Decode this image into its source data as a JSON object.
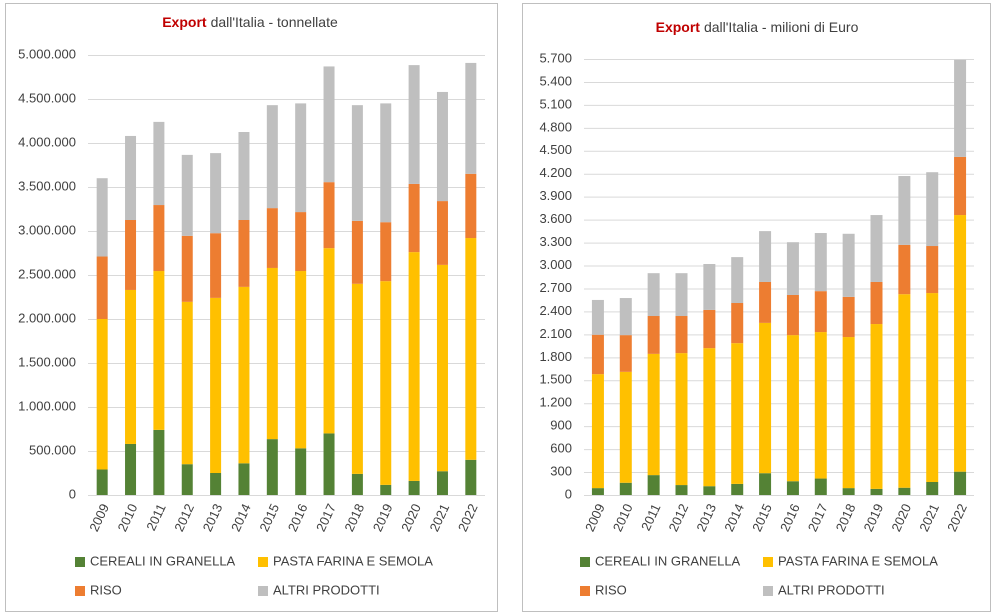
{
  "chart_data": [
    {
      "type": "stacked_bar",
      "title_emphasis": "Export",
      "title": "dall'Italia - tonnellate",
      "categories": [
        "2009",
        "2010",
        "2011",
        "2012",
        "2013",
        "2014",
        "2015",
        "2016",
        "2017",
        "2018",
        "2019",
        "2020",
        "2021",
        "2022"
      ],
      "series": [
        {
          "name": "CEREALI IN GRANELLA",
          "color": "#548235",
          "values": [
            290000,
            580000,
            740000,
            350000,
            250000,
            360000,
            635000,
            530000,
            700000,
            240000,
            115000,
            160000,
            270000,
            400000
          ]
        },
        {
          "name": "PASTA FARINA E SEMOLA",
          "color": "#ffc000",
          "values": [
            1710000,
            1750000,
            1805000,
            1845000,
            1990000,
            2005000,
            1945000,
            2015000,
            2105000,
            2160000,
            2315000,
            2600000,
            2345000,
            2520000
          ]
        },
        {
          "name": "RISO",
          "color": "#ed7d31",
          "values": [
            710000,
            795000,
            750000,
            750000,
            735000,
            760000,
            680000,
            670000,
            750000,
            715000,
            670000,
            775000,
            725000,
            730000
          ]
        },
        {
          "name": "ALTRI PRODOTTI",
          "color": "#bfbfbf",
          "values": [
            890000,
            955000,
            945000,
            920000,
            910000,
            1000000,
            1170000,
            1235000,
            1315000,
            1315000,
            1350000,
            1350000,
            1240000,
            1260000
          ]
        }
      ],
      "ylim": [
        0,
        5000000
      ],
      "yticks": [
        0,
        {
          "value": 500000,
          "label": "500.000"
        },
        {
          "value": 1000000,
          "label": "1.000.000"
        },
        {
          "value": 1500000,
          "label": "1.500.000"
        },
        {
          "value": 2000000,
          "label": "2.000.000"
        },
        {
          "value": 2500000,
          "label": "2.500.000"
        },
        {
          "value": 3000000,
          "label": "3.000.000"
        },
        {
          "value": 3500000,
          "label": "3.500.000"
        },
        {
          "value": 4000000,
          "label": "4.000.000"
        },
        {
          "value": 4500000,
          "label": "4.500.000"
        },
        {
          "value": 5000000,
          "label": "5.000.000"
        }
      ],
      "grid": true
    },
    {
      "type": "stacked_bar",
      "title_emphasis": "Export",
      "title": "dall'Italia - milioni di Euro",
      "categories": [
        "2009",
        "2010",
        "2011",
        "2012",
        "2013",
        "2014",
        "2015",
        "2016",
        "2017",
        "2018",
        "2019",
        "2020",
        "2021",
        "2022"
      ],
      "series": [
        {
          "name": "CEREALI IN GRANELLA",
          "color": "#548235",
          "values": [
            90,
            160,
            260,
            130,
            115,
            145,
            285,
            180,
            215,
            90,
            80,
            95,
            170,
            305
          ]
        },
        {
          "name": "PASTA FARINA E SEMOLA",
          "color": "#ffc000",
          "values": [
            1490,
            1450,
            1585,
            1725,
            1805,
            1840,
            1965,
            1910,
            1915,
            1975,
            2155,
            2530,
            2470,
            3355
          ]
        },
        {
          "name": "RISO",
          "color": "#ed7d31",
          "values": [
            515,
            480,
            495,
            485,
            500,
            525,
            535,
            525,
            535,
            525,
            550,
            645,
            615,
            760
          ]
        },
        {
          "name": "ALTRI PRODOTTI",
          "color": "#bfbfbf",
          "values": [
            455,
            485,
            560,
            560,
            600,
            600,
            665,
            690,
            760,
            825,
            875,
            900,
            965,
            1270
          ]
        }
      ],
      "ylim": [
        0,
        5700
      ],
      "yticks": [
        0,
        300,
        600,
        900,
        {
          "value": 1200,
          "label": "1.200"
        },
        {
          "value": 1500,
          "label": "1.500"
        },
        {
          "value": 1800,
          "label": "1.800"
        },
        {
          "value": 2100,
          "label": "2.100"
        },
        {
          "value": 2400,
          "label": "2.400"
        },
        {
          "value": 2700,
          "label": "2.700"
        },
        {
          "value": 3000,
          "label": "3.000"
        },
        {
          "value": 3300,
          "label": "3.300"
        },
        {
          "value": 3600,
          "label": "3.600"
        },
        {
          "value": 3900,
          "label": "3.900"
        },
        {
          "value": 4200,
          "label": "4.200"
        },
        {
          "value": 4500,
          "label": "4.500"
        },
        {
          "value": 4800,
          "label": "4.800"
        },
        {
          "value": 5100,
          "label": "5.100"
        },
        {
          "value": 5400,
          "label": "5.400"
        },
        {
          "value": 5700,
          "label": "5.700"
        }
      ],
      "grid": true
    }
  ]
}
